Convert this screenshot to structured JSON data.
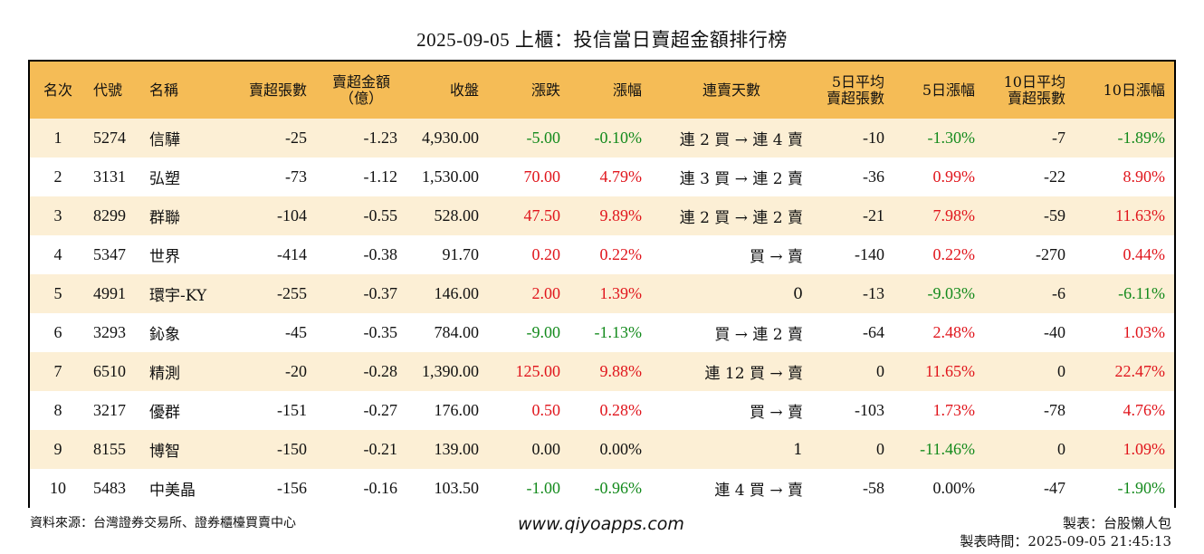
{
  "title": "2025-09-05 上櫃：投信當日賣超金額排行榜",
  "colors": {
    "header_bg": "#f5bc56",
    "row_alt_bg": "#fcefd5",
    "up": "#e0151c",
    "down": "#138a1c"
  },
  "headers": {
    "rank": "名次",
    "code": "代號",
    "name": "名稱",
    "net_sell_shares": "賣超張數",
    "net_sell_amount_l1": "賣超金額",
    "net_sell_amount_l2": "（億）",
    "close": "收盤",
    "change": "漲跌",
    "change_pct": "漲幅",
    "streak": "連賣天數",
    "avg5_l1": "5日平均",
    "avg5_l2": "賣超張數",
    "pct5": "5日漲幅",
    "avg10_l1": "10日平均",
    "avg10_l2": "賣超張數",
    "pct10": "10日漲幅"
  },
  "rows": [
    {
      "rank": "1",
      "code": "5274",
      "name": "信驊",
      "shares": "-25",
      "amount": "-1.23",
      "close": "4,930.00",
      "change": "-5.00",
      "change_dir": "down",
      "pct": "-0.10%",
      "pct_dir": "down",
      "streak": "連 2 買 → 連 4 賣",
      "avg5": "-10",
      "pct5": "-1.30%",
      "pct5_dir": "down",
      "avg10": "-7",
      "pct10": "-1.89%",
      "pct10_dir": "down"
    },
    {
      "rank": "2",
      "code": "3131",
      "name": "弘塑",
      "shares": "-73",
      "amount": "-1.12",
      "close": "1,530.00",
      "change": "70.00",
      "change_dir": "up",
      "pct": "4.79%",
      "pct_dir": "up",
      "streak": "連 3 買 → 連 2 賣",
      "avg5": "-36",
      "pct5": "0.99%",
      "pct5_dir": "up",
      "avg10": "-22",
      "pct10": "8.90%",
      "pct10_dir": "up"
    },
    {
      "rank": "3",
      "code": "8299",
      "name": "群聯",
      "shares": "-104",
      "amount": "-0.55",
      "close": "528.00",
      "change": "47.50",
      "change_dir": "up",
      "pct": "9.89%",
      "pct_dir": "up",
      "streak": "連 2 買 → 連 2 賣",
      "avg5": "-21",
      "pct5": "7.98%",
      "pct5_dir": "up",
      "avg10": "-59",
      "pct10": "11.63%",
      "pct10_dir": "up"
    },
    {
      "rank": "4",
      "code": "5347",
      "name": "世界",
      "shares": "-414",
      "amount": "-0.38",
      "close": "91.70",
      "change": "0.20",
      "change_dir": "up",
      "pct": "0.22%",
      "pct_dir": "up",
      "streak": "買 → 賣",
      "avg5": "-140",
      "pct5": "0.22%",
      "pct5_dir": "up",
      "avg10": "-270",
      "pct10": "0.44%",
      "pct10_dir": "up"
    },
    {
      "rank": "5",
      "code": "4991",
      "name": "環宇-KY",
      "shares": "-255",
      "amount": "-0.37",
      "close": "146.00",
      "change": "2.00",
      "change_dir": "up",
      "pct": "1.39%",
      "pct_dir": "up",
      "streak": "0",
      "avg5": "-13",
      "pct5": "-9.03%",
      "pct5_dir": "down",
      "avg10": "-6",
      "pct10": "-6.11%",
      "pct10_dir": "down"
    },
    {
      "rank": "6",
      "code": "3293",
      "name": "鈊象",
      "shares": "-45",
      "amount": "-0.35",
      "close": "784.00",
      "change": "-9.00",
      "change_dir": "down",
      "pct": "-1.13%",
      "pct_dir": "down",
      "streak": "買 → 連 2 賣",
      "avg5": "-64",
      "pct5": "2.48%",
      "pct5_dir": "up",
      "avg10": "-40",
      "pct10": "1.03%",
      "pct10_dir": "up"
    },
    {
      "rank": "7",
      "code": "6510",
      "name": "精測",
      "shares": "-20",
      "amount": "-0.28",
      "close": "1,390.00",
      "change": "125.00",
      "change_dir": "up",
      "pct": "9.88%",
      "pct_dir": "up",
      "streak": "連 12 買 → 賣",
      "avg5": "0",
      "pct5": "11.65%",
      "pct5_dir": "up",
      "avg10": "0",
      "pct10": "22.47%",
      "pct10_dir": "up"
    },
    {
      "rank": "8",
      "code": "3217",
      "name": "優群",
      "shares": "-151",
      "amount": "-0.27",
      "close": "176.00",
      "change": "0.50",
      "change_dir": "up",
      "pct": "0.28%",
      "pct_dir": "up",
      "streak": "買 → 賣",
      "avg5": "-103",
      "pct5": "1.73%",
      "pct5_dir": "up",
      "avg10": "-78",
      "pct10": "4.76%",
      "pct10_dir": "up"
    },
    {
      "rank": "9",
      "code": "8155",
      "name": "博智",
      "shares": "-150",
      "amount": "-0.21",
      "close": "139.00",
      "change": "0.00",
      "change_dir": "flat",
      "pct": "0.00%",
      "pct_dir": "flat",
      "streak": "1",
      "avg5": "0",
      "pct5": "-11.46%",
      "pct5_dir": "down",
      "avg10": "0",
      "pct10": "1.09%",
      "pct10_dir": "up"
    },
    {
      "rank": "10",
      "code": "5483",
      "name": "中美晶",
      "shares": "-156",
      "amount": "-0.16",
      "close": "103.50",
      "change": "-1.00",
      "change_dir": "down",
      "pct": "-0.96%",
      "pct_dir": "down",
      "streak": "連 4 買 → 賣",
      "avg5": "-58",
      "pct5": "0.00%",
      "pct5_dir": "flat",
      "avg10": "-47",
      "pct10": "-1.90%",
      "pct10_dir": "down"
    }
  ],
  "footer": {
    "source": "資料來源：台灣證券交易所、證券櫃檯買賣中心",
    "website": "www.qiyoapps.com",
    "author": "製表：台股懶人包",
    "made_at": "製表時間：2025-09-05 21:45:13"
  }
}
